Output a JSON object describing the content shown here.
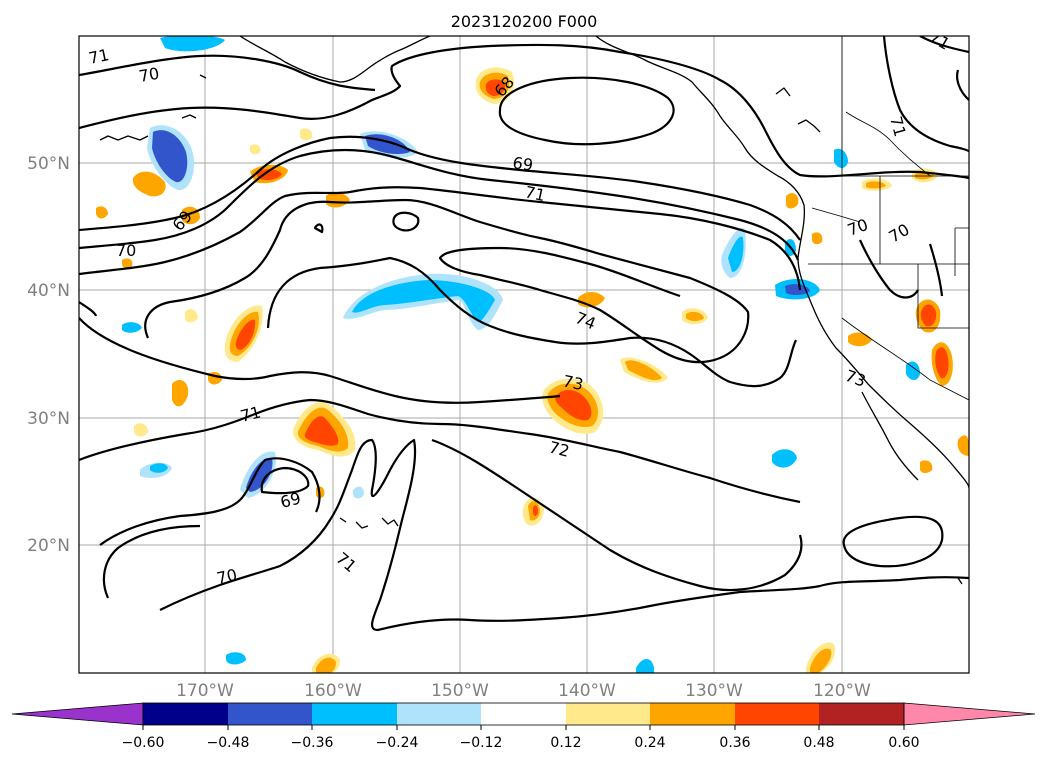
{
  "title": "2023120200 F000",
  "colors": {
    "grid": "#a9a9a9",
    "levels": [
      "#9933cc",
      "#00008b",
      "#3355cc",
      "#00bfff",
      "#aee3fb",
      "#ffffff",
      "#ffe98a",
      "#ffa500",
      "#ff4500",
      "#b22222",
      "#ff88aa"
    ]
  },
  "map": {
    "lon_labels": [
      "170°W",
      "160°W",
      "150°W",
      "140°W",
      "130°W",
      "120°W"
    ],
    "lat_labels": [
      "50°N",
      "40°N",
      "30°N",
      "20°N"
    ]
  },
  "colorbar": {
    "ticks": [
      "−0.60",
      "−0.48",
      "−0.36",
      "−0.24",
      "−0.12",
      "0.12",
      "0.24",
      "0.36",
      "0.48",
      "0.60"
    ]
  },
  "contour_labels": [
    "71",
    "70",
    "70",
    "68",
    "69",
    "71",
    "69",
    "70",
    "70",
    "71",
    "74",
    "73",
    "73",
    "71",
    "72",
    "69",
    "71",
    "70",
    "71"
  ]
}
